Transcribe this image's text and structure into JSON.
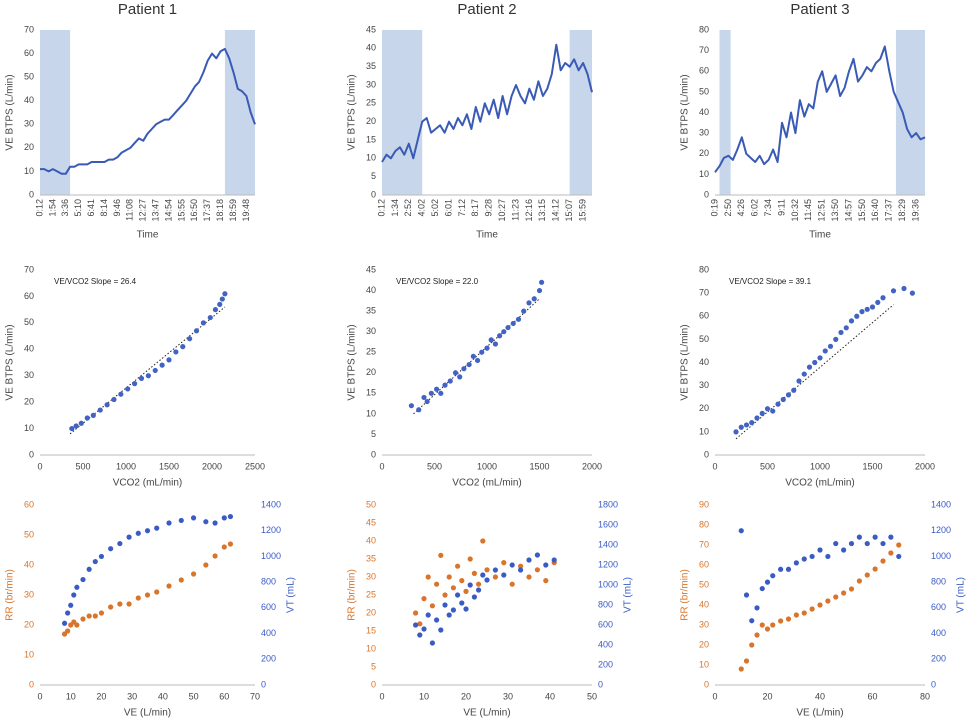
{
  "chart_data": [
    {
      "type": "line",
      "title": "Patient 1",
      "ylabel": "VE BTPS (L/min)",
      "xlabel": "Time",
      "color": "#3a5bb5",
      "shade_color": "#c8d6ec",
      "categories": [
        "0:12",
        null,
        null,
        "1:54",
        null,
        null,
        "3:36",
        null,
        null,
        "5:10",
        null,
        null,
        "6:41",
        null,
        null,
        "8:14",
        null,
        null,
        "9:46",
        null,
        null,
        "11:08",
        null,
        null,
        "12:27",
        null,
        null,
        "13:47",
        null,
        null,
        "14:54",
        null,
        null,
        "15:55",
        null,
        null,
        "16:50",
        null,
        null,
        "17:37",
        null,
        null,
        "18:18",
        null,
        null,
        "18:59",
        null,
        null,
        "19:48",
        null,
        null
      ],
      "values": [
        11,
        11,
        10,
        11,
        10,
        9,
        9,
        12,
        12,
        13,
        13,
        13,
        14,
        14,
        14,
        14,
        15,
        15,
        16,
        18,
        19,
        20,
        22,
        24,
        23,
        26,
        28,
        30,
        31,
        32,
        32,
        34,
        36,
        38,
        40,
        43,
        46,
        48,
        52,
        57,
        60,
        58,
        61,
        62,
        58,
        52,
        45,
        44,
        42,
        35,
        30
      ],
      "shaded": [
        [
          0,
          7
        ],
        [
          43,
          50
        ]
      ],
      "ylim": [
        0,
        70
      ],
      "yticks": [
        0,
        10,
        20,
        30,
        40,
        50,
        60,
        70
      ]
    },
    {
      "type": "line",
      "title": "Patient 2",
      "ylabel": "VE BTPS (L/min)",
      "xlabel": "Time",
      "color": "#3a5bb5",
      "shade_color": "#c8d6ec",
      "categories": [
        "0:12",
        null,
        null,
        "1:34",
        null,
        null,
        "2:52",
        null,
        null,
        "4:02",
        null,
        null,
        "5:02",
        null,
        null,
        "6:01",
        null,
        null,
        "7:12",
        null,
        null,
        "8:17",
        null,
        null,
        "9:28",
        null,
        null,
        "10:27",
        null,
        null,
        "11:23",
        null,
        null,
        "12:16",
        null,
        null,
        "13:15",
        null,
        null,
        "14:12",
        null,
        null,
        "15:07",
        null,
        null,
        "15:59",
        null,
        null
      ],
      "values": [
        9,
        11,
        10,
        12,
        13,
        11,
        14,
        10,
        15,
        20,
        21,
        17,
        18,
        19,
        17,
        20,
        18,
        21,
        19,
        22,
        18,
        24,
        20,
        25,
        22,
        26,
        21,
        27,
        22,
        27,
        30,
        27,
        25,
        29,
        26,
        31,
        27,
        29,
        33,
        41,
        34,
        36,
        35,
        37,
        34,
        36,
        33,
        28
      ],
      "shaded": [
        [
          0,
          9
        ],
        [
          42,
          47
        ]
      ],
      "ylim": [
        0,
        45
      ],
      "yticks": [
        0,
        5,
        10,
        15,
        20,
        25,
        30,
        35,
        40,
        45
      ]
    },
    {
      "type": "line",
      "title": "Patient 3",
      "ylabel": "VE BTPS (L/min)",
      "xlabel": "Time",
      "color": "#3a5bb5",
      "shade_color": "#c8d6ec",
      "categories": [
        "0:19",
        null,
        null,
        "2:50",
        null,
        null,
        "4:26",
        null,
        null,
        "6:02",
        null,
        null,
        "7:34",
        null,
        null,
        "9:11",
        null,
        null,
        "10:32",
        null,
        null,
        "11:45",
        null,
        null,
        "12:51",
        null,
        null,
        "13:50",
        null,
        null,
        "14:57",
        null,
        null,
        "15:50",
        null,
        null,
        "16:40",
        null,
        null,
        "17:37",
        null,
        null,
        "18:29",
        null,
        null,
        "19:36",
        null,
        null
      ],
      "values": [
        11,
        14,
        18,
        19,
        17,
        22,
        28,
        20,
        18,
        16,
        19,
        15,
        17,
        22,
        16,
        35,
        28,
        40,
        30,
        46,
        38,
        44,
        42,
        55,
        60,
        50,
        54,
        58,
        48,
        52,
        60,
        66,
        55,
        58,
        62,
        60,
        64,
        66,
        72,
        60,
        50,
        45,
        40,
        32,
        28,
        30,
        27,
        28
      ],
      "shaded": [
        [
          1,
          3.5
        ],
        [
          40.5,
          47
        ]
      ],
      "ylim": [
        0,
        80
      ],
      "yticks": [
        0,
        10,
        20,
        30,
        40,
        50,
        60,
        70,
        80
      ]
    },
    {
      "type": "scatter",
      "ylabel": "VE BTPS (L/min)",
      "xlabel": "VCO2 (mL/min)",
      "annotation": "VE/VCO2 Slope = 26.4",
      "color": "#4263c4",
      "x": [
        370,
        420,
        480,
        550,
        620,
        700,
        780,
        860,
        940,
        1020,
        1100,
        1180,
        1260,
        1340,
        1420,
        1500,
        1580,
        1660,
        1740,
        1820,
        1900,
        1980,
        2040,
        2090,
        2120,
        2150
      ],
      "values": [
        10,
        11,
        12,
        14,
        15,
        17,
        19,
        21,
        23,
        25,
        27,
        29,
        30,
        32,
        34,
        36,
        39,
        41,
        44,
        47,
        50,
        52,
        55,
        57,
        59,
        61
      ],
      "trend": {
        "x": [
          350,
          2150
        ],
        "y": [
          8,
          56
        ]
      },
      "xlim": [
        0,
        2500
      ],
      "xticks": [
        0,
        500,
        1000,
        1500,
        2000,
        2500
      ],
      "ylim": [
        0,
        70
      ],
      "yticks": [
        0,
        10,
        20,
        30,
        40,
        50,
        60,
        70
      ]
    },
    {
      "type": "scatter",
      "ylabel": "VE BTPS (L/min)",
      "xlabel": "VCO2 (mL/min)",
      "annotation": "VE/VCO2 Slope = 22.0",
      "color": "#4263c4",
      "x": [
        280,
        350,
        400,
        430,
        470,
        520,
        560,
        600,
        650,
        700,
        740,
        780,
        830,
        870,
        910,
        950,
        1000,
        1040,
        1080,
        1120,
        1160,
        1200,
        1250,
        1300,
        1350,
        1400,
        1450,
        1500,
        1520
      ],
      "values": [
        12,
        11,
        14,
        13,
        15,
        16,
        15,
        17,
        18,
        20,
        19,
        21,
        22,
        24,
        23,
        25,
        26,
        28,
        27,
        29,
        30,
        31,
        32,
        33,
        35,
        37,
        38,
        40,
        42
      ],
      "trend": {
        "x": [
          300,
          1500
        ],
        "y": [
          10,
          38
        ]
      },
      "xlim": [
        0,
        2000
      ],
      "xticks": [
        0,
        500,
        1000,
        1500,
        2000
      ],
      "ylim": [
        0,
        45
      ],
      "yticks": [
        0,
        5,
        10,
        15,
        20,
        25,
        30,
        35,
        40,
        45
      ]
    },
    {
      "type": "scatter",
      "ylabel": "VE BTPS (L/min)",
      "xlabel": "VCO2 (mL/min)",
      "annotation": "VE/VCO2 Slope = 39.1",
      "color": "#4263c4",
      "x": [
        200,
        250,
        300,
        350,
        400,
        450,
        500,
        550,
        600,
        650,
        700,
        750,
        800,
        850,
        900,
        950,
        1000,
        1050,
        1100,
        1150,
        1200,
        1250,
        1300,
        1350,
        1400,
        1450,
        1500,
        1550,
        1600,
        1700,
        1800,
        1880
      ],
      "values": [
        10,
        12,
        13,
        14,
        16,
        18,
        20,
        19,
        22,
        24,
        26,
        28,
        32,
        35,
        38,
        40,
        42,
        45,
        47,
        50,
        53,
        55,
        58,
        60,
        62,
        63,
        64,
        66,
        68,
        71,
        72,
        70
      ],
      "trend": {
        "x": [
          200,
          1700
        ],
        "y": [
          7,
          65
        ]
      },
      "xlim": [
        0,
        2000
      ],
      "xticks": [
        0,
        500,
        1000,
        1500,
        2000
      ],
      "ylim": [
        0,
        80
      ],
      "yticks": [
        0,
        10,
        20,
        30,
        40,
        50,
        60,
        70,
        80
      ]
    },
    {
      "type": "scatter",
      "ylabel": "RR (br/min)",
      "y2label": "VT (mL)",
      "xlabel": "VE (L/min)",
      "x": [
        8,
        9,
        10,
        11,
        12,
        14,
        16,
        18,
        20,
        23,
        26,
        29,
        32,
        35,
        38,
        42,
        46,
        50,
        54,
        57,
        60,
        62
      ],
      "series": [
        {
          "color": "#d9742b",
          "values": [
            17,
            18,
            20,
            21,
            20,
            22,
            23,
            23,
            24,
            26,
            27,
            27,
            29,
            30,
            31,
            33,
            35,
            37,
            40,
            43,
            46,
            47
          ]
        },
        {
          "color": "#3a5bc4",
          "axis": "y2",
          "values": [
            480,
            560,
            620,
            700,
            760,
            820,
            900,
            960,
            1000,
            1060,
            1100,
            1150,
            1180,
            1200,
            1220,
            1260,
            1280,
            1300,
            1270,
            1260,
            1300,
            1310
          ]
        }
      ],
      "xlim": [
        0,
        70
      ],
      "xticks": [
        0,
        10,
        20,
        30,
        40,
        50,
        60,
        70
      ],
      "ylim": [
        0,
        60
      ],
      "yticks": [
        0,
        10,
        20,
        30,
        40,
        50,
        60
      ],
      "y2lim": [
        0,
        1400
      ],
      "y2ticks": [
        0,
        200,
        400,
        600,
        800,
        1000,
        1200,
        1400
      ]
    },
    {
      "type": "scatter",
      "ylabel": "RR (br/min)",
      "y2label": "VT (mL)",
      "xlabel": "VE (L/min)",
      "x": [
        8,
        9,
        10,
        11,
        12,
        13,
        14,
        15,
        16,
        17,
        18,
        19,
        20,
        21,
        22,
        23,
        24,
        25,
        27,
        29,
        31,
        33,
        35,
        37,
        39,
        41
      ],
      "series": [
        {
          "color": "#d9742b",
          "values": [
            20,
            17,
            24,
            30,
            22,
            28,
            36,
            25,
            30,
            27,
            33,
            29,
            26,
            35,
            31,
            28,
            40,
            32,
            30,
            34,
            28,
            33,
            30,
            32,
            29,
            34
          ]
        },
        {
          "color": "#3a5bc4",
          "axis": "y2",
          "values": [
            600,
            500,
            560,
            700,
            420,
            650,
            550,
            800,
            700,
            750,
            900,
            820,
            760,
            1000,
            880,
            950,
            1100,
            1050,
            1150,
            1100,
            1200,
            1150,
            1250,
            1300,
            1200,
            1250
          ]
        }
      ],
      "xlim": [
        0,
        50
      ],
      "xticks": [
        0,
        10,
        20,
        30,
        40,
        50
      ],
      "ylim": [
        0,
        50
      ],
      "yticks": [
        0,
        5,
        10,
        15,
        20,
        25,
        30,
        35,
        40,
        45,
        50
      ],
      "y2lim": [
        0,
        1800
      ],
      "y2ticks": [
        0,
        200,
        400,
        600,
        800,
        1000,
        1200,
        1400,
        1600,
        1800
      ]
    },
    {
      "type": "scatter",
      "ylabel": "RR (br/min)",
      "y2label": "VT (mL)",
      "xlabel": "VE (L/min)",
      "x": [
        10,
        12,
        14,
        16,
        18,
        20,
        22,
        25,
        28,
        31,
        34,
        37,
        40,
        43,
        46,
        49,
        52,
        55,
        58,
        61,
        64,
        67,
        70
      ],
      "series": [
        {
          "color": "#d9742b",
          "values": [
            8,
            12,
            20,
            25,
            30,
            28,
            30,
            32,
            33,
            35,
            36,
            38,
            40,
            42,
            44,
            46,
            48,
            52,
            55,
            58,
            62,
            66,
            70
          ]
        },
        {
          "color": "#3a5bc4",
          "axis": "y2",
          "values": [
            1200,
            700,
            500,
            600,
            750,
            800,
            850,
            900,
            900,
            950,
            980,
            1000,
            1050,
            1000,
            1100,
            1050,
            1100,
            1150,
            1100,
            1150,
            1100,
            1150,
            1000
          ]
        }
      ],
      "xlim": [
        0,
        80
      ],
      "xticks": [
        0,
        20,
        40,
        60,
        80
      ],
      "ylim": [
        0,
        90
      ],
      "yticks": [
        0,
        10,
        20,
        30,
        40,
        50,
        60,
        70,
        80,
        90
      ],
      "y2lim": [
        0,
        1400
      ],
      "y2ticks": [
        0,
        200,
        400,
        600,
        800,
        1000,
        1200,
        1400
      ]
    }
  ]
}
